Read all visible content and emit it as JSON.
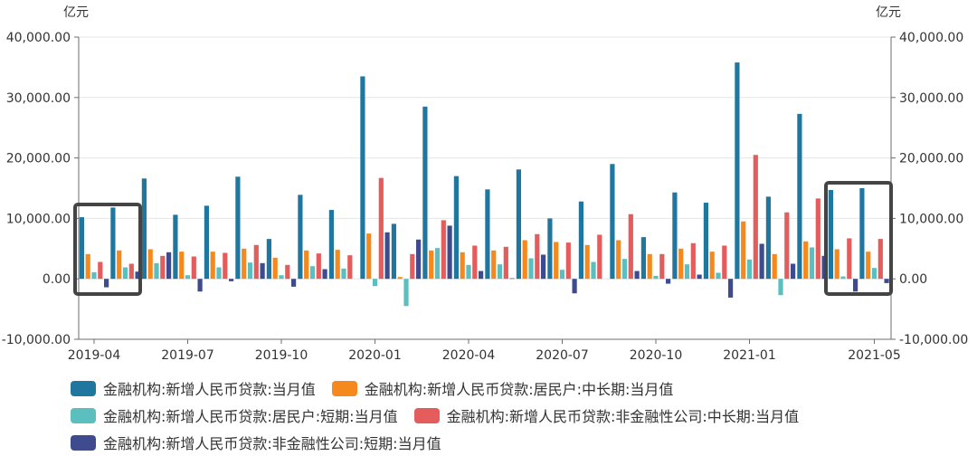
{
  "chart_data": {
    "type": "bar",
    "y_unit_left": "亿元",
    "y_unit_right": "亿元",
    "ylim": [
      -10000,
      40000
    ],
    "y_ticks": [
      "-10,000.00",
      "0.00",
      "10,000.00",
      "20,000.00",
      "30,000.00",
      "40,000.00"
    ],
    "x_tick_labels": [
      "2019-04",
      "2019-07",
      "2019-10",
      "2020-01",
      "2020-04",
      "2020-07",
      "2020-10",
      "2021-01",
      "2021-05"
    ],
    "categories": [
      "2019-04",
      "2019-05",
      "2019-06",
      "2019-07",
      "2019-08",
      "2019-09",
      "2019-10",
      "2019-11",
      "2019-12",
      "2020-01",
      "2020-02",
      "2020-03",
      "2020-04",
      "2020-05",
      "2020-06",
      "2020-07",
      "2020-08",
      "2020-09",
      "2020-10",
      "2020-11",
      "2020-12",
      "2021-01",
      "2021-02",
      "2021-03",
      "2021-04",
      "2021-05"
    ],
    "series": [
      {
        "name": "金融机构:新增人民币贷款:当月值",
        "color": "#1f77a0",
        "values": [
          10200,
          11800,
          16600,
          10600,
          12100,
          16900,
          6600,
          13900,
          11400,
          33500,
          9100,
          28500,
          17000,
          14800,
          18100,
          10000,
          12800,
          19000,
          6900,
          14300,
          12600,
          35800,
          13600,
          27300,
          14700,
          15000
        ]
      },
      {
        "name": "金融机构:新增人民币贷款:居民户:中长期:当月值",
        "color": "#f5891d",
        "values": [
          4100,
          4700,
          4900,
          4500,
          4500,
          5000,
          3500,
          4700,
          4800,
          7500,
          300,
          4700,
          4400,
          4700,
          6400,
          6100,
          5600,
          6400,
          4100,
          5000,
          4500,
          9500,
          4100,
          6200,
          4900,
          4500
        ]
      },
      {
        "name": "金融机构:新增人民币贷款:居民户:短期:当月值",
        "color": "#5bbfc0",
        "values": [
          1100,
          1900,
          2600,
          600,
          1900,
          2700,
          600,
          2100,
          1700,
          -1200,
          -4500,
          5100,
          2300,
          2400,
          3400,
          1500,
          2800,
          3300,
          500,
          2400,
          1000,
          3200,
          -2700,
          5200,
          400,
          1800
        ]
      },
      {
        "name": "金融机构:新增人民币贷款:非金融性公司:中长期:当月值",
        "color": "#e45c5c",
        "values": [
          2800,
          2500,
          3800,
          3700,
          4300,
          5600,
          2300,
          4200,
          3900,
          16700,
          4100,
          9700,
          5500,
          5300,
          7400,
          6000,
          7300,
          10700,
          4100,
          5900,
          5500,
          20500,
          11000,
          13300,
          6700,
          6600
        ]
      },
      {
        "name": "金融机构:新增人民币贷款:非金融性公司:短期:当月值",
        "color": "#3e4b8e",
        "values": [
          -1400,
          1200,
          4400,
          -2100,
          -400,
          2600,
          -1300,
          1600,
          0,
          7700,
          6500,
          8800,
          1300,
          100,
          4000,
          -2400,
          0,
          1300,
          -800,
          700,
          -3100,
          5800,
          2500,
          3800,
          -2100,
          -700
        ]
      }
    ],
    "legend": "bottom",
    "grid": true
  }
}
